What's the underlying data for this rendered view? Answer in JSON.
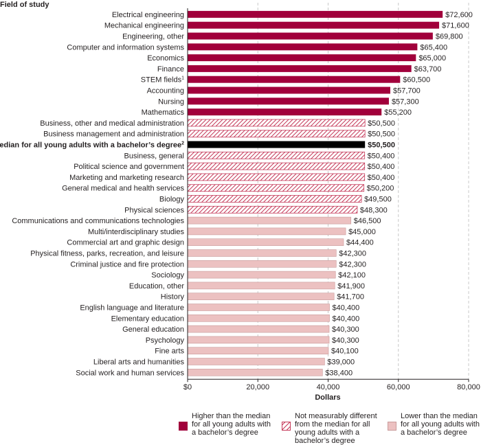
{
  "chart_data": {
    "type": "bar",
    "orientation": "horizontal",
    "y_axis_title": "Field of study",
    "xlabel": "Dollars",
    "xlim": [
      0,
      80000
    ],
    "xticks": [
      {
        "value": 0,
        "label": "$0"
      },
      {
        "value": 20000,
        "label": "20,000"
      },
      {
        "value": 40000,
        "label": "40,000"
      },
      {
        "value": 60000,
        "label": "60,000"
      },
      {
        "value": 80000,
        "label": "80,000"
      }
    ],
    "grid": "vertical dashed",
    "bars": [
      {
        "label": "Electrical engineering",
        "value": 72600,
        "value_label": "$72,600",
        "group": "higher"
      },
      {
        "label": "Mechanical engineering",
        "value": 71600,
        "value_label": "$71,600",
        "group": "higher"
      },
      {
        "label": "Engineering, other",
        "value": 69800,
        "value_label": "$69,800",
        "group": "higher"
      },
      {
        "label": "Computer and information systems",
        "value": 65400,
        "value_label": "$65,400",
        "group": "higher"
      },
      {
        "label": "Economics",
        "value": 65000,
        "value_label": "$65,000",
        "group": "higher"
      },
      {
        "label": "Finance",
        "value": 63700,
        "value_label": "$63,700",
        "group": "higher"
      },
      {
        "label": "STEM fields",
        "sup": "1",
        "value": 60500,
        "value_label": "$60,500",
        "group": "higher"
      },
      {
        "label": "Accounting",
        "value": 57700,
        "value_label": "$57,700",
        "group": "higher"
      },
      {
        "label": "Nursing",
        "value": 57300,
        "value_label": "$57,300",
        "group": "higher"
      },
      {
        "label": "Mathematics",
        "value": 55200,
        "value_label": "$55,200",
        "group": "higher"
      },
      {
        "label": "Business, other and medical administration",
        "value": 50500,
        "value_label": "$50,500",
        "group": "same"
      },
      {
        "label": "Business management and administration",
        "value": 50500,
        "value_label": "$50,500",
        "group": "same"
      },
      {
        "label": "Median for all young adults with a bachelor’s degree",
        "sup": "2",
        "value": 50500,
        "value_label": "$50,500",
        "group": "median"
      },
      {
        "label": "Business, general",
        "value": 50400,
        "value_label": "$50,400",
        "group": "same"
      },
      {
        "label": "Political science and government",
        "value": 50400,
        "value_label": "$50,400",
        "group": "same"
      },
      {
        "label": "Marketing and marketing research",
        "value": 50400,
        "value_label": "$50,400",
        "group": "same"
      },
      {
        "label": "General medical and health services",
        "value": 50200,
        "value_label": "$50,200",
        "group": "same"
      },
      {
        "label": "Biology",
        "value": 49500,
        "value_label": "$49,500",
        "group": "same"
      },
      {
        "label": "Physical sciences",
        "value": 48300,
        "value_label": "$48,300",
        "group": "same"
      },
      {
        "label": "Communications and communications technologies",
        "value": 46500,
        "value_label": "$46,500",
        "group": "lower"
      },
      {
        "label": "Multi/interdisciplinary studies",
        "value": 45000,
        "value_label": "$45,000",
        "group": "lower"
      },
      {
        "label": "Commercial art and graphic design",
        "value": 44400,
        "value_label": "$44,400",
        "group": "lower"
      },
      {
        "label": "Physical fitness, parks, recreation, and leisure",
        "value": 42300,
        "value_label": "$42,300",
        "group": "lower"
      },
      {
        "label": "Criminal justice and fire protection",
        "value": 42300,
        "value_label": "$42,300",
        "group": "lower"
      },
      {
        "label": "Sociology",
        "value": 42100,
        "value_label": "$42,100",
        "group": "lower"
      },
      {
        "label": "Education, other",
        "value": 41900,
        "value_label": "$41,900",
        "group": "lower"
      },
      {
        "label": "History",
        "value": 41700,
        "value_label": "$41,700",
        "group": "lower"
      },
      {
        "label": "English language and literature",
        "value": 40400,
        "value_label": "$40,400",
        "group": "lower"
      },
      {
        "label": "Elementary education",
        "value": 40400,
        "value_label": "$40,400",
        "group": "lower"
      },
      {
        "label": "General education",
        "value": 40300,
        "value_label": "$40,300",
        "group": "lower"
      },
      {
        "label": "Psychology",
        "value": 40300,
        "value_label": "$40,300",
        "group": "lower"
      },
      {
        "label": "Fine arts",
        "value": 40100,
        "value_label": "$40,100",
        "group": "lower"
      },
      {
        "label": "Liberal arts and humanities",
        "value": 39000,
        "value_label": "$39,000",
        "group": "lower"
      },
      {
        "label": "Social work and human services",
        "value": 38400,
        "value_label": "$38,400",
        "group": "lower"
      }
    ],
    "legend": [
      {
        "group": "higher",
        "label": "Higher than the median for all young adults with a bachelor’s degree",
        "fill": "solid"
      },
      {
        "group": "same",
        "label": "Not measurably different from the median for all young adults with a bachelor’s degree",
        "fill": "hatched"
      },
      {
        "group": "lower",
        "label": "Lower than the median for all young adults with a bachelor’s degree",
        "fill": "solid"
      }
    ],
    "legend_placement": "bottom",
    "colors": {
      "higher": "#a1003b",
      "same_stroke": "#c53a5a",
      "median": "#000000",
      "lower": "#ecc1c1",
      "lower_stroke": "#c99a9a",
      "grid": "#c8c8c8"
    }
  }
}
